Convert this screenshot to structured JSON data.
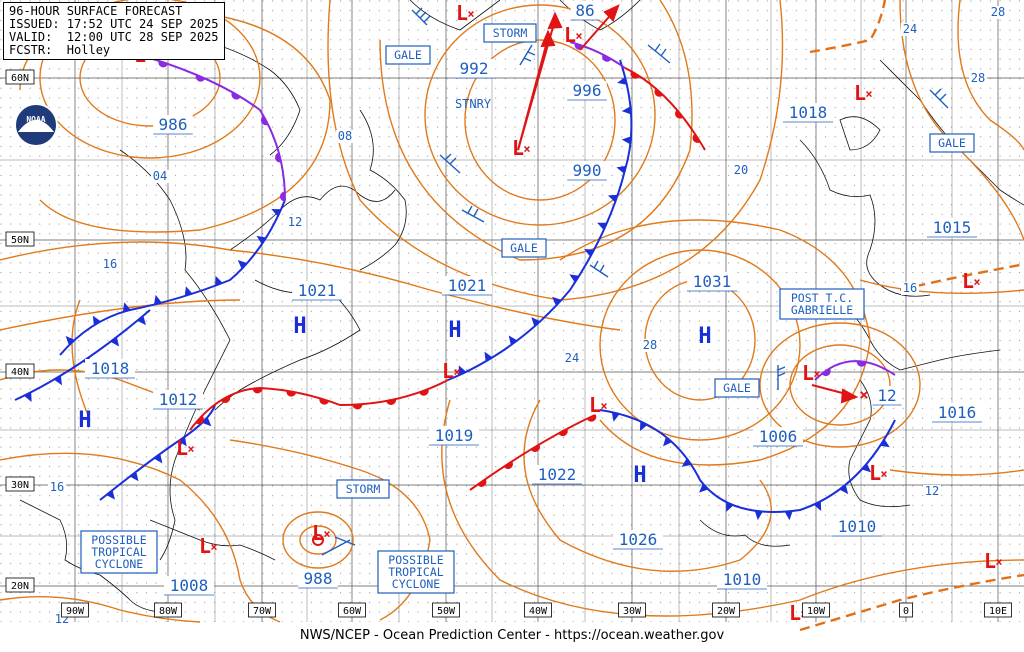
{
  "header": {
    "title": "96-HOUR SURFACE FORECAST",
    "issued": "ISSUED: 17:52 UTC 24 SEP 2025",
    "valid": "VALID:  12:00 UTC 28 SEP 2025",
    "fcstr": "FCSTR:  Holley"
  },
  "logo": "NOAA",
  "footer": "NWS/NCEP - Ocean Prediction Center - https://ocean.weather.gov",
  "colors": {
    "isobar": "#e07a1a",
    "label": "#1f5fbf",
    "cold": "#1a2fd8",
    "warm": "#e01414",
    "occluded": "#8a2be2",
    "low": "#e01414",
    "high": "#1a2fd8"
  },
  "lat_labels": [
    "60N",
    "50N",
    "40N",
    "30N",
    "20N"
  ],
  "lon_labels": [
    "90W",
    "80W",
    "70W",
    "60W",
    "50W",
    "40W",
    "30W",
    "20W",
    "10W",
    "0",
    "10E"
  ],
  "pressure_labels": [
    {
      "id": "p986",
      "text": "986"
    },
    {
      "id": "p992",
      "text": "992"
    },
    {
      "id": "p996",
      "text": "996"
    },
    {
      "id": "p990",
      "text": "990"
    },
    {
      "id": "p1018a",
      "text": "1018"
    },
    {
      "id": "p1015",
      "text": "1015"
    },
    {
      "id": "p1021a",
      "text": "1021"
    },
    {
      "id": "p1021b",
      "text": "1021"
    },
    {
      "id": "p1031",
      "text": "1031"
    },
    {
      "id": "p1018b",
      "text": "1018"
    },
    {
      "id": "p1012",
      "text": "1012"
    },
    {
      "id": "p1019",
      "text": "1019"
    },
    {
      "id": "p1022",
      "text": "1022"
    },
    {
      "id": "p1006",
      "text": "1006"
    },
    {
      "id": "p1016",
      "text": "1016"
    },
    {
      "id": "p1026",
      "text": "1026"
    },
    {
      "id": "p1010a",
      "text": "1010"
    },
    {
      "id": "p1010b",
      "text": "1010"
    },
    {
      "id": "p1008",
      "text": "1008"
    },
    {
      "id": "p988",
      "text": "988"
    },
    {
      "id": "p86",
      "text": "86"
    },
    {
      "id": "p12c",
      "text": "12"
    }
  ],
  "isobar_labels": [
    {
      "id": "i04",
      "text": "04"
    },
    {
      "id": "i08",
      "text": "08"
    },
    {
      "id": "i12a",
      "text": "12"
    },
    {
      "id": "i16a",
      "text": "16"
    },
    {
      "id": "i20",
      "text": "20"
    },
    {
      "id": "i24a",
      "text": "24"
    },
    {
      "id": "i24b",
      "text": "24"
    },
    {
      "id": "i28a",
      "text": "28"
    },
    {
      "id": "i28b",
      "text": "28"
    },
    {
      "id": "i28c",
      "text": "28"
    },
    {
      "id": "i16b",
      "text": "16"
    },
    {
      "id": "i16c",
      "text": "16"
    },
    {
      "id": "i12b",
      "text": "12"
    },
    {
      "id": "i12d",
      "text": "12"
    }
  ],
  "boxed_labels": [
    {
      "id": "storm1",
      "lines": [
        "STORM"
      ]
    },
    {
      "id": "gale1",
      "lines": [
        "GALE"
      ]
    },
    {
      "id": "gale2",
      "lines": [
        "GALE"
      ]
    },
    {
      "id": "gale3",
      "lines": [
        "GALE"
      ]
    },
    {
      "id": "gale4",
      "lines": [
        "GALE"
      ]
    },
    {
      "id": "storm2",
      "lines": [
        "STORM"
      ]
    },
    {
      "id": "ptc",
      "lines": [
        "POST T.C.",
        "GABRIELLE"
      ]
    },
    {
      "id": "ptcyc1",
      "lines": [
        "POSSIBLE",
        "TROPICAL",
        "CYCLONE"
      ]
    },
    {
      "id": "ptcyc2",
      "lines": [
        "POSSIBLE",
        "TROPICAL",
        "CYCLONE"
      ]
    }
  ],
  "plain_labels": [
    {
      "id": "stnry",
      "text": "STNRY"
    }
  ],
  "high_letter": "H",
  "low_letter": "L",
  "low_cross": "×"
}
